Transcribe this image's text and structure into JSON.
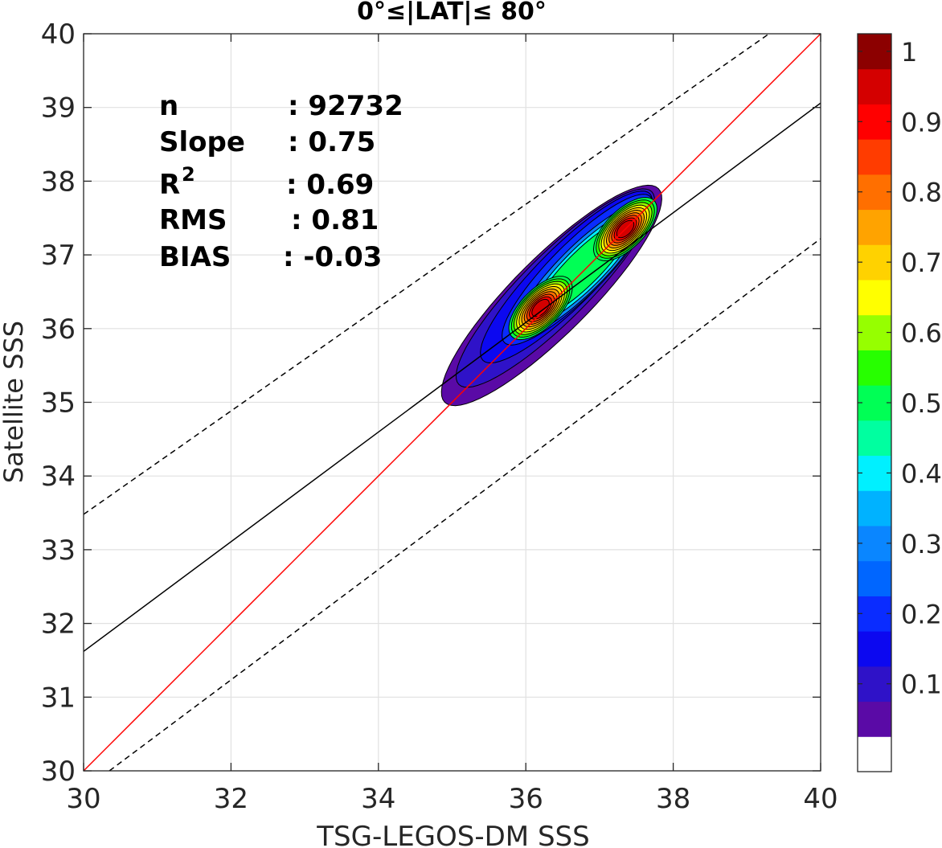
{
  "chart_data": {
    "type": "contour",
    "title": "0°≤|LAT|≤ 80°",
    "xlabel": "TSG-LEGOS-DM SSS",
    "ylabel": "Satellite SSS",
    "xlim": [
      30,
      40
    ],
    "ylim": [
      30,
      40
    ],
    "xticks": [
      "30",
      "32",
      "34",
      "36",
      "38",
      "40"
    ],
    "yticks": [
      "30",
      "31",
      "32",
      "33",
      "34",
      "35",
      "36",
      "37",
      "38",
      "39",
      "40"
    ],
    "grid": true,
    "stats": [
      {
        "label": "n",
        "value": ": 92732"
      },
      {
        "label": "Slope",
        "value": ": 0.75"
      },
      {
        "label": "R",
        "sup": "2",
        "value": ": 0.69"
      },
      {
        "label": "RMS",
        "value": ": 0.81"
      },
      {
        "label": "BIAS",
        "value": ": -0.03"
      }
    ],
    "lines": [
      {
        "name": "1:1",
        "color": "#ff0000",
        "style": "solid",
        "points": [
          [
            30,
            30
          ],
          [
            40,
            40
          ]
        ]
      },
      {
        "name": "fit",
        "color": "#000000",
        "style": "solid",
        "points": [
          [
            30,
            31.62
          ],
          [
            40,
            39.06
          ]
        ]
      },
      {
        "name": "upper",
        "color": "#000000",
        "style": "dashed",
        "points": [
          [
            30,
            33.48
          ],
          [
            39.3,
            40
          ]
        ]
      },
      {
        "name": "lower",
        "color": "#000000",
        "style": "dashed",
        "points": [
          [
            30.35,
            30
          ],
          [
            40,
            37.22
          ]
        ]
      }
    ],
    "density_peaks": [
      {
        "x": 36.2,
        "y": 36.28,
        "value": 0.95
      },
      {
        "x": 37.35,
        "y": 37.35,
        "value": 0.93
      }
    ],
    "colorbar": {
      "tick_labels": [
        "1",
        "0.9",
        "0.8",
        "0.7",
        "0.6",
        "0.5",
        "0.4",
        "0.3",
        "0.2",
        "0.1"
      ],
      "tick_values": [
        1,
        0.9,
        0.8,
        0.7,
        0.6,
        0.5,
        0.4,
        0.3,
        0.2,
        0.1
      ],
      "bands": [
        "#ffffff",
        "#5a0aa6",
        "#2f12c8",
        "#0c08f0",
        "#0a2cff",
        "#0066ff",
        "#0a86ff",
        "#00b2ff",
        "#00f0ff",
        "#00ffa0",
        "#00ff55",
        "#27ff00",
        "#96ff00",
        "#ffff00",
        "#ffd200",
        "#ffa300",
        "#ff6f00",
        "#ff3c00",
        "#ff0000",
        "#d40000",
        "#8c0000"
      ]
    }
  }
}
